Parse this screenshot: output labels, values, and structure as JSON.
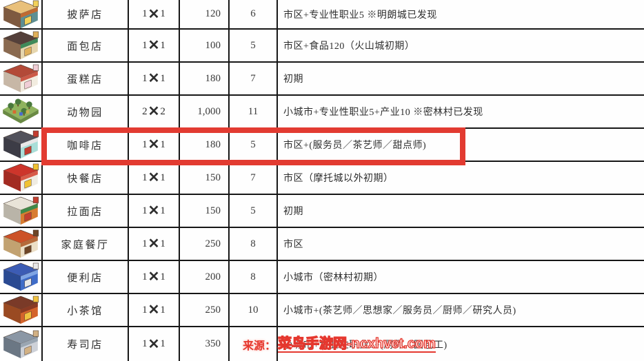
{
  "table": {
    "rows": [
      {
        "name": "披萨店",
        "size": {
          "a": "1",
          "x": "✕",
          "b": "1"
        },
        "cost": "120",
        "count": "6",
        "condition": "市区+专业性职业5 ※明朗城已发现",
        "icon": {
          "label": "pizza-shop-icon",
          "type": "shop",
          "roof": "#e9c07a",
          "side": "#7e5a40",
          "wall": "#5d8f93",
          "awning": "#c06a32",
          "accent": "#f2d15a"
        }
      },
      {
        "name": "面包店",
        "size": {
          "a": "1",
          "x": "✕",
          "b": "1"
        },
        "cost": "100",
        "count": "5",
        "condition": "市区+食品120（火山城初期）",
        "icon": {
          "label": "bakery-icon",
          "type": "shop",
          "roof": "#54403a",
          "side": "#8a6a50",
          "wall": "#e6d6ae",
          "awning": "#3f8a5a",
          "accent": "#e0b05a"
        }
      },
      {
        "name": "蛋糕店",
        "size": {
          "a": "1",
          "x": "✕",
          "b": "1"
        },
        "cost": "180",
        "count": "7",
        "condition": "初期",
        "icon": {
          "label": "cake-shop-icon",
          "type": "shop",
          "roof": "#b34a38",
          "side": "#c7b7a6",
          "wall": "#f2ece0",
          "awning": "#cc5a48",
          "accent": "#f0cdd6"
        }
      },
      {
        "name": "动物园",
        "size": {
          "a": "2",
          "x": "✕",
          "b": "2"
        },
        "cost": "1,000",
        "count": "11",
        "condition": "小城市+专业性职业5+产业10 ※密林村已发现",
        "icon": {
          "label": "zoo-icon",
          "type": "park",
          "ground": "#8fb35e",
          "groundSide": "#6a8a44",
          "tree": "#49793c",
          "accents": [
            "#d86a30",
            "#4a6ad0",
            "#c8b050"
          ]
        }
      },
      {
        "name": "咖啡店",
        "size": {
          "a": "1",
          "x": "✕",
          "b": "1"
        },
        "cost": "180",
        "count": "5",
        "condition": "市区+(服务员／茶艺师／甜点师)",
        "icon": {
          "label": "coffee-shop-icon",
          "type": "shop",
          "roof": "#52525c",
          "side": "#3c3c46",
          "wall": "#a9ded8",
          "awning": "#e8e8e8",
          "accent": "#c23c30"
        }
      },
      {
        "name": "快餐店",
        "size": {
          "a": "1",
          "x": "✕",
          "b": "1"
        },
        "cost": "150",
        "count": "7",
        "condition": "市区（摩托城以外初期）",
        "icon": {
          "label": "fast-food-icon",
          "type": "shop",
          "roof": "#cd352b",
          "side": "#a32b22",
          "wall": "#f0ece2",
          "awning": "#d85a48",
          "accent": "#f0c233"
        }
      },
      {
        "name": "拉面店",
        "size": {
          "a": "1",
          "x": "✕",
          "b": "1"
        },
        "cost": "150",
        "count": "5",
        "condition": "初期",
        "icon": {
          "label": "ramen-shop-icon",
          "type": "shop",
          "roof": "#e9e4d8",
          "side": "#b9b4a8",
          "wall": "#d87c30",
          "awning": "#3f8a4a",
          "accent": "#c33f30"
        }
      },
      {
        "name": "家庭餐厅",
        "size": {
          "a": "1",
          "x": "✕",
          "b": "1"
        },
        "cost": "250",
        "count": "8",
        "condition": "市区",
        "icon": {
          "label": "family-restaurant-icon",
          "type": "shop",
          "roof": "#cc5228",
          "side": "#c2a271",
          "wall": "#ecdfc6",
          "awning": "#b56a3a",
          "accent": "#6e4526"
        }
      },
      {
        "name": "便利店",
        "size": {
          "a": "1",
          "x": "✕",
          "b": "1"
        },
        "cost": "200",
        "count": "8",
        "condition": "小城市（密林村初期）",
        "icon": {
          "label": "convenience-store-icon",
          "type": "shop",
          "roof": "#3c5cb4",
          "side": "#2a4a92",
          "wall": "#3f6cc8",
          "awning": "#7fa5e4",
          "accent": "#e8e8e8"
        }
      },
      {
        "name": "小茶馆",
        "size": {
          "a": "1",
          "x": "✕",
          "b": "1"
        },
        "cost": "250",
        "count": "10",
        "condition": "小城市+(茶艺师／思想家／服务员／厨师／研究人员)",
        "icon": {
          "label": "tea-house-icon",
          "type": "shop",
          "roof": "#7a3a28",
          "side": "#9a4a22",
          "wall": "#d4642c",
          "awning": "#8a3a24",
          "accent": "#f0c240"
        }
      },
      {
        "name": "寿司店",
        "size": {
          "a": "1",
          "x": "✕",
          "b": "1"
        },
        "cost": "350",
        "count": "",
        "condition": "小城市+专业性职业8+(厨师／园艺工)",
        "icon": {
          "label": "sushi-shop-icon",
          "type": "shop",
          "roof": "#8b97a5",
          "side": "#6b7784",
          "wall": "#cdd1d8",
          "awning": "#9aa6b2",
          "accent": "#d2b184"
        }
      }
    ]
  },
  "highlight": {
    "color": "#e23b31",
    "highlighted_row": "咖啡店"
  },
  "watermark": {
    "prefix": "来源：",
    "text": "菜鸟手游网-ncxhvet.com",
    "color": "#e5372e"
  }
}
